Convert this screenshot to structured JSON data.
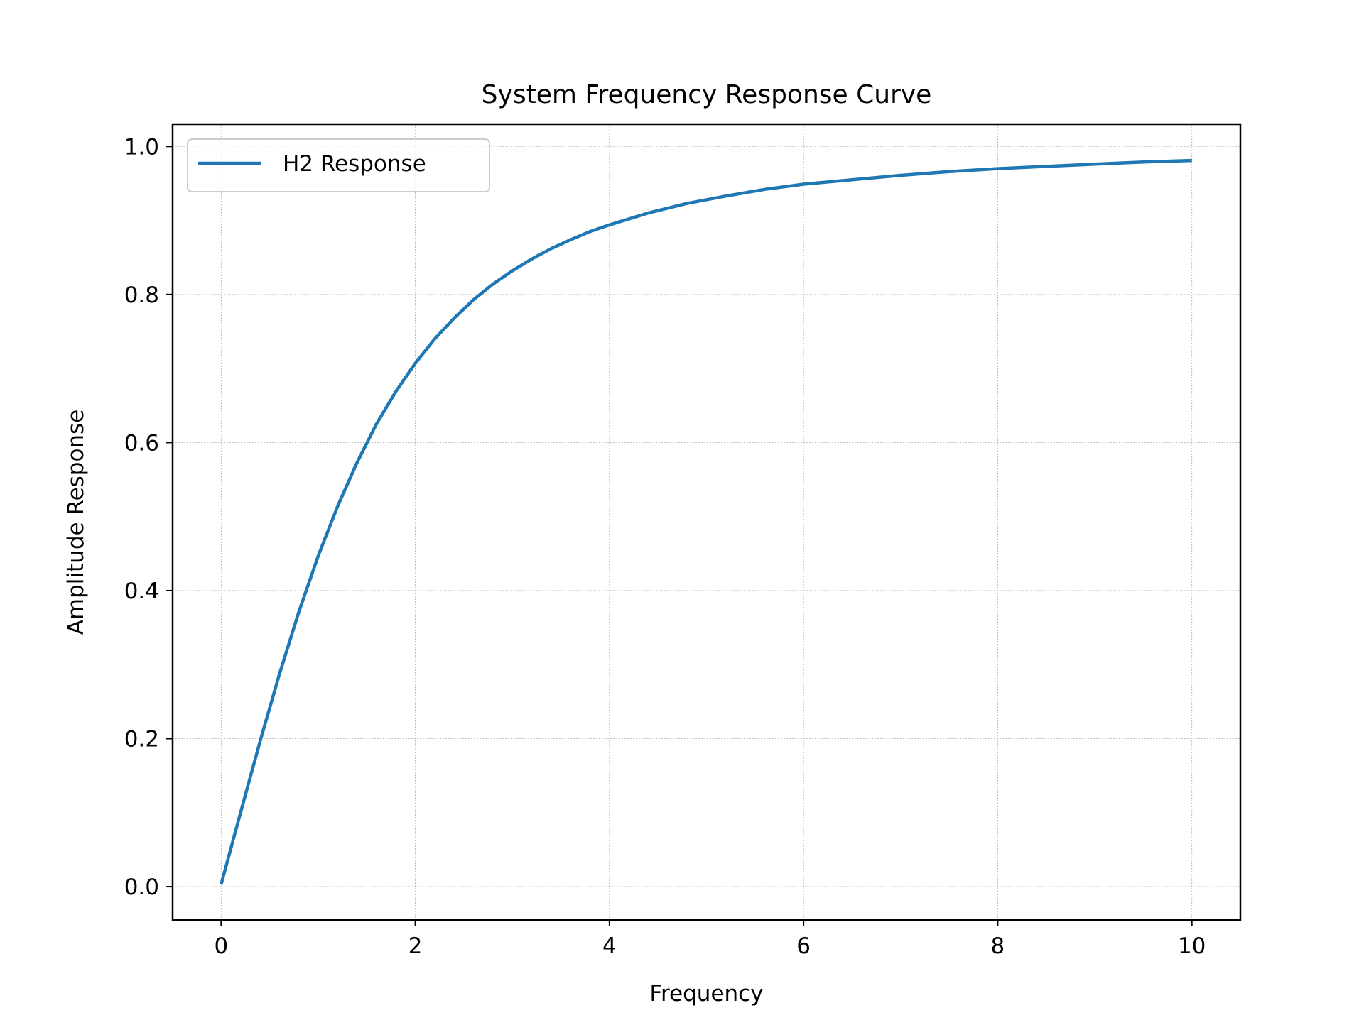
{
  "chart_data": {
    "type": "line",
    "title": "System Frequency Response Curve",
    "xlabel": "Frequency",
    "ylabel": "Amplitude Response",
    "xlim": [
      -0.5,
      10.5
    ],
    "ylim": [
      -0.045,
      1.03
    ],
    "xticks": [
      0,
      2,
      4,
      6,
      8,
      10
    ],
    "yticks": [
      0.0,
      0.2,
      0.4,
      0.6,
      0.8,
      1.0
    ],
    "xtick_labels": [
      "0",
      "2",
      "4",
      "6",
      "8",
      "10"
    ],
    "ytick_labels": [
      "0.0",
      "0.2",
      "0.4",
      "0.6",
      "0.8",
      "1.0"
    ],
    "grid": true,
    "legend_position": "upper-left",
    "series": [
      {
        "name": "H2 Response",
        "color": "#1f77b4",
        "x": [
          0.0,
          0.2,
          0.4,
          0.6,
          0.8,
          1.0,
          1.2,
          1.4,
          1.6,
          1.8,
          2.0,
          2.2,
          2.4,
          2.6,
          2.8,
          3.0,
          3.2,
          3.4,
          3.6,
          3.8,
          4.0,
          4.4,
          4.8,
          5.2,
          5.6,
          6.0,
          6.5,
          7.0,
          7.5,
          8.0,
          8.5,
          9.0,
          9.5,
          10.0
        ],
        "y": [
          0.003,
          0.1,
          0.196,
          0.287,
          0.371,
          0.447,
          0.514,
          0.573,
          0.625,
          0.669,
          0.707,
          0.74,
          0.768,
          0.793,
          0.814,
          0.832,
          0.848,
          0.862,
          0.874,
          0.885,
          0.894,
          0.91,
          0.923,
          0.933,
          0.942,
          0.949,
          0.955,
          0.961,
          0.966,
          0.97,
          0.973,
          0.976,
          0.979,
          0.981
        ]
      }
    ]
  }
}
